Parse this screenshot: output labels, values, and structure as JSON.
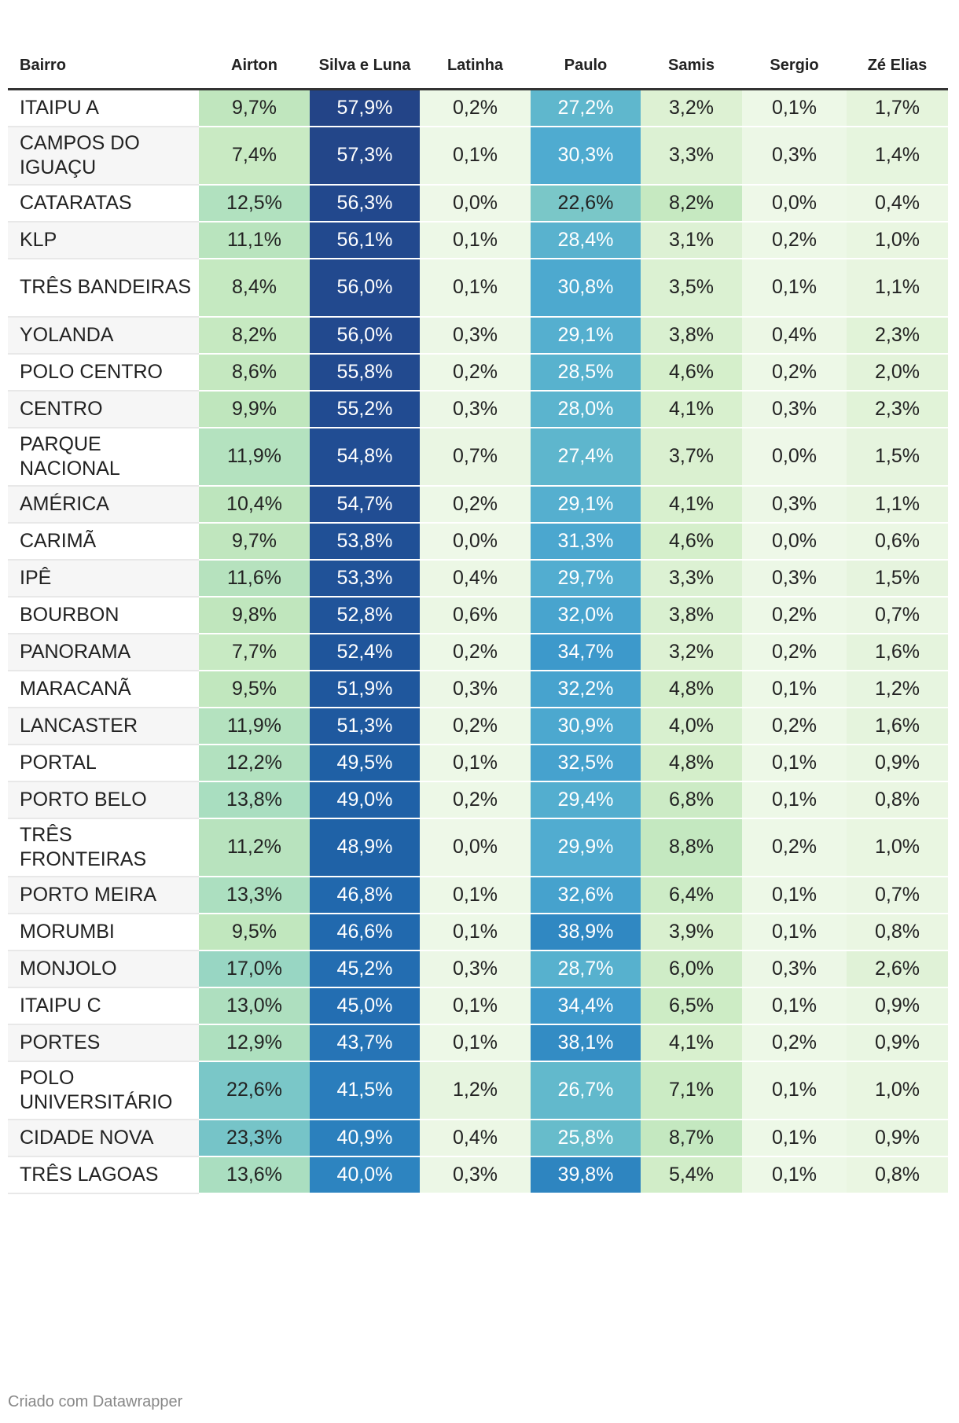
{
  "chart_data": {
    "type": "table",
    "columns": [
      "Bairro",
      "Airton",
      "Silva e Luna",
      "Latinha",
      "Paulo",
      "Samis",
      "Sergio",
      "Zé Elias"
    ],
    "rows": [
      {
        "bairro": "ITAIPU A",
        "values": [
          9.7,
          57.9,
          0.2,
          27.2,
          3.2,
          0.1,
          1.7
        ],
        "labels": [
          "9,7%",
          "57,9%",
          "0,2%",
          "27,2%",
          "3,2%",
          "0,1%",
          "1,7%"
        ]
      },
      {
        "bairro": "CAMPOS DO IGUAÇU",
        "values": [
          7.4,
          57.3,
          0.1,
          30.3,
          3.3,
          0.3,
          1.4
        ],
        "labels": [
          "7,4%",
          "57,3%",
          "0,1%",
          "30,3%",
          "3,3%",
          "0,3%",
          "1,4%"
        ]
      },
      {
        "bairro": "CATARATAS",
        "values": [
          12.5,
          56.3,
          0.0,
          22.6,
          8.2,
          0.0,
          0.4
        ],
        "labels": [
          "12,5%",
          "56,3%",
          "0,0%",
          "22,6%",
          "8,2%",
          "0,0%",
          "0,4%"
        ]
      },
      {
        "bairro": "KLP",
        "values": [
          11.1,
          56.1,
          0.1,
          28.4,
          3.1,
          0.2,
          1.0
        ],
        "labels": [
          "11,1%",
          "56,1%",
          "0,1%",
          "28,4%",
          "3,1%",
          "0,2%",
          "1,0%"
        ]
      },
      {
        "bairro": "TRÊS BANDEIRAS",
        "values": [
          8.4,
          56.0,
          0.1,
          30.8,
          3.5,
          0.1,
          1.1
        ],
        "labels": [
          "8,4%",
          "56,0%",
          "0,1%",
          "30,8%",
          "3,5%",
          "0,1%",
          "1,1%"
        ]
      },
      {
        "bairro": "YOLANDA",
        "values": [
          8.2,
          56.0,
          0.3,
          29.1,
          3.8,
          0.4,
          2.3
        ],
        "labels": [
          "8,2%",
          "56,0%",
          "0,3%",
          "29,1%",
          "3,8%",
          "0,4%",
          "2,3%"
        ]
      },
      {
        "bairro": "POLO CENTRO",
        "values": [
          8.6,
          55.8,
          0.2,
          28.5,
          4.6,
          0.2,
          2.0
        ],
        "labels": [
          "8,6%",
          "55,8%",
          "0,2%",
          "28,5%",
          "4,6%",
          "0,2%",
          "2,0%"
        ]
      },
      {
        "bairro": "CENTRO",
        "values": [
          9.9,
          55.2,
          0.3,
          28.0,
          4.1,
          0.3,
          2.3
        ],
        "labels": [
          "9,9%",
          "55,2%",
          "0,3%",
          "28,0%",
          "4,1%",
          "0,3%",
          "2,3%"
        ]
      },
      {
        "bairro": "PARQUE NACIONAL",
        "values": [
          11.9,
          54.8,
          0.7,
          27.4,
          3.7,
          0.0,
          1.5
        ],
        "labels": [
          "11,9%",
          "54,8%",
          "0,7%",
          "27,4%",
          "3,7%",
          "0,0%",
          "1,5%"
        ]
      },
      {
        "bairro": "AMÉRICA",
        "values": [
          10.4,
          54.7,
          0.2,
          29.1,
          4.1,
          0.3,
          1.1
        ],
        "labels": [
          "10,4%",
          "54,7%",
          "0,2%",
          "29,1%",
          "4,1%",
          "0,3%",
          "1,1%"
        ]
      },
      {
        "bairro": "CARIMÃ",
        "values": [
          9.7,
          53.8,
          0.0,
          31.3,
          4.6,
          0.0,
          0.6
        ],
        "labels": [
          "9,7%",
          "53,8%",
          "0,0%",
          "31,3%",
          "4,6%",
          "0,0%",
          "0,6%"
        ]
      },
      {
        "bairro": "IPÊ",
        "values": [
          11.6,
          53.3,
          0.4,
          29.7,
          3.3,
          0.3,
          1.5
        ],
        "labels": [
          "11,6%",
          "53,3%",
          "0,4%",
          "29,7%",
          "3,3%",
          "0,3%",
          "1,5%"
        ]
      },
      {
        "bairro": "BOURBON",
        "values": [
          9.8,
          52.8,
          0.6,
          32.0,
          3.8,
          0.2,
          0.7
        ],
        "labels": [
          "9,8%",
          "52,8%",
          "0,6%",
          "32,0%",
          "3,8%",
          "0,2%",
          "0,7%"
        ]
      },
      {
        "bairro": "PANORAMA",
        "values": [
          7.7,
          52.4,
          0.2,
          34.7,
          3.2,
          0.2,
          1.6
        ],
        "labels": [
          "7,7%",
          "52,4%",
          "0,2%",
          "34,7%",
          "3,2%",
          "0,2%",
          "1,6%"
        ]
      },
      {
        "bairro": "MARACANÃ",
        "values": [
          9.5,
          51.9,
          0.3,
          32.2,
          4.8,
          0.1,
          1.2
        ],
        "labels": [
          "9,5%",
          "51,9%",
          "0,3%",
          "32,2%",
          "4,8%",
          "0,1%",
          "1,2%"
        ]
      },
      {
        "bairro": "LANCASTER",
        "values": [
          11.9,
          51.3,
          0.2,
          30.9,
          4.0,
          0.2,
          1.6
        ],
        "labels": [
          "11,9%",
          "51,3%",
          "0,2%",
          "30,9%",
          "4,0%",
          "0,2%",
          "1,6%"
        ]
      },
      {
        "bairro": "PORTAL",
        "values": [
          12.2,
          49.5,
          0.1,
          32.5,
          4.8,
          0.1,
          0.9
        ],
        "labels": [
          "12,2%",
          "49,5%",
          "0,1%",
          "32,5%",
          "4,8%",
          "0,1%",
          "0,9%"
        ]
      },
      {
        "bairro": "PORTO BELO",
        "values": [
          13.8,
          49.0,
          0.2,
          29.4,
          6.8,
          0.1,
          0.8
        ],
        "labels": [
          "13,8%",
          "49,0%",
          "0,2%",
          "29,4%",
          "6,8%",
          "0,1%",
          "0,8%"
        ]
      },
      {
        "bairro": "TRÊS FRONTEIRAS",
        "values": [
          11.2,
          48.9,
          0.0,
          29.9,
          8.8,
          0.2,
          1.0
        ],
        "labels": [
          "11,2%",
          "48,9%",
          "0,0%",
          "29,9%",
          "8,8%",
          "0,2%",
          "1,0%"
        ]
      },
      {
        "bairro": "PORTO MEIRA",
        "values": [
          13.3,
          46.8,
          0.1,
          32.6,
          6.4,
          0.1,
          0.7
        ],
        "labels": [
          "13,3%",
          "46,8%",
          "0,1%",
          "32,6%",
          "6,4%",
          "0,1%",
          "0,7%"
        ]
      },
      {
        "bairro": "MORUMBI",
        "values": [
          9.5,
          46.6,
          0.1,
          38.9,
          3.9,
          0.1,
          0.8
        ],
        "labels": [
          "9,5%",
          "46,6%",
          "0,1%",
          "38,9%",
          "3,9%",
          "0,1%",
          "0,8%"
        ]
      },
      {
        "bairro": "MONJOLO",
        "values": [
          17.0,
          45.2,
          0.3,
          28.7,
          6.0,
          0.3,
          2.6
        ],
        "labels": [
          "17,0%",
          "45,2%",
          "0,3%",
          "28,7%",
          "6,0%",
          "0,3%",
          "2,6%"
        ]
      },
      {
        "bairro": "ITAIPU C",
        "values": [
          13.0,
          45.0,
          0.1,
          34.4,
          6.5,
          0.1,
          0.9
        ],
        "labels": [
          "13,0%",
          "45,0%",
          "0,1%",
          "34,4%",
          "6,5%",
          "0,1%",
          "0,9%"
        ]
      },
      {
        "bairro": "PORTES",
        "values": [
          12.9,
          43.7,
          0.1,
          38.1,
          4.1,
          0.2,
          0.9
        ],
        "labels": [
          "12,9%",
          "43,7%",
          "0,1%",
          "38,1%",
          "4,1%",
          "0,2%",
          "0,9%"
        ]
      },
      {
        "bairro": "POLO UNIVERSITÁRIO",
        "values": [
          22.6,
          41.5,
          1.2,
          26.7,
          7.1,
          0.1,
          1.0
        ],
        "labels": [
          "22,6%",
          "41,5%",
          "1,2%",
          "26,7%",
          "7,1%",
          "0,1%",
          "1,0%"
        ]
      },
      {
        "bairro": "CIDADE NOVA",
        "values": [
          23.3,
          40.9,
          0.4,
          25.8,
          8.7,
          0.1,
          0.9
        ],
        "labels": [
          "23,3%",
          "40,9%",
          "0,4%",
          "25,8%",
          "8,7%",
          "0,1%",
          "0,9%"
        ]
      },
      {
        "bairro": "TRÊS LAGOAS",
        "values": [
          13.6,
          40.0,
          0.3,
          39.8,
          5.4,
          0.1,
          0.8
        ],
        "labels": [
          "13,6%",
          "40,0%",
          "0,3%",
          "39,8%",
          "5,4%",
          "0,1%",
          "0,8%"
        ]
      }
    ],
    "color_scale": {
      "stops": [
        0,
        2,
        5,
        10,
        15,
        20,
        25,
        30,
        35,
        40,
        45,
        50,
        55,
        60
      ],
      "colors": [
        "#eef8e8",
        "#e3f3da",
        "#d3eec9",
        "#bfe6bd",
        "#a2dbc1",
        "#8acfc5",
        "#6bbfca",
        "#50acd0",
        "#3c98cb",
        "#2d84c0",
        "#236eb2",
        "#1e5ea4",
        "#214c92",
        "#253e7f"
      ],
      "light_text": "#ffffff",
      "dark_text": "#222222"
    }
  },
  "footer": "Criado com Datawrapper"
}
